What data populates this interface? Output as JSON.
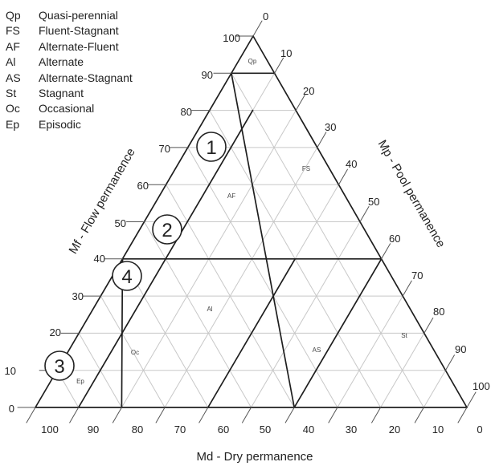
{
  "legend": [
    {
      "code": "Qp",
      "label": "Quasi-perennial"
    },
    {
      "code": "FS",
      "label": "Fluent-Stagnant"
    },
    {
      "code": "AF",
      "label": "Alternate-Fluent"
    },
    {
      "code": "Al",
      "label": "Alternate"
    },
    {
      "code": "AS",
      "label": "Alternate-Stagnant"
    },
    {
      "code": "St",
      "label": "Stagnant"
    },
    {
      "code": "Oc",
      "label": "Occasional"
    },
    {
      "code": "Ep",
      "label": "Episodic"
    }
  ],
  "axes": {
    "left": {
      "title": "Mf - Flow permanence",
      "ticks": [
        "0",
        "10",
        "20",
        "30",
        "40",
        "50",
        "60",
        "70",
        "80",
        "90",
        "100"
      ]
    },
    "right": {
      "title": "Mp - Pool permanence",
      "ticks": [
        "0",
        "10",
        "20",
        "30",
        "40",
        "50",
        "60",
        "70",
        "80",
        "90",
        "100"
      ]
    },
    "bottom": {
      "title": "Md - Dry permanence",
      "ticks": [
        "100",
        "90",
        "80",
        "70",
        "60",
        "50",
        "40",
        "30",
        "20",
        "10",
        "0"
      ]
    }
  },
  "regions": [
    "Qp",
    "FS",
    "AF",
    "Al",
    "AS",
    "St",
    "Oc",
    "Ep"
  ],
  "markers": [
    "1",
    "2",
    "3",
    "4"
  ]
}
